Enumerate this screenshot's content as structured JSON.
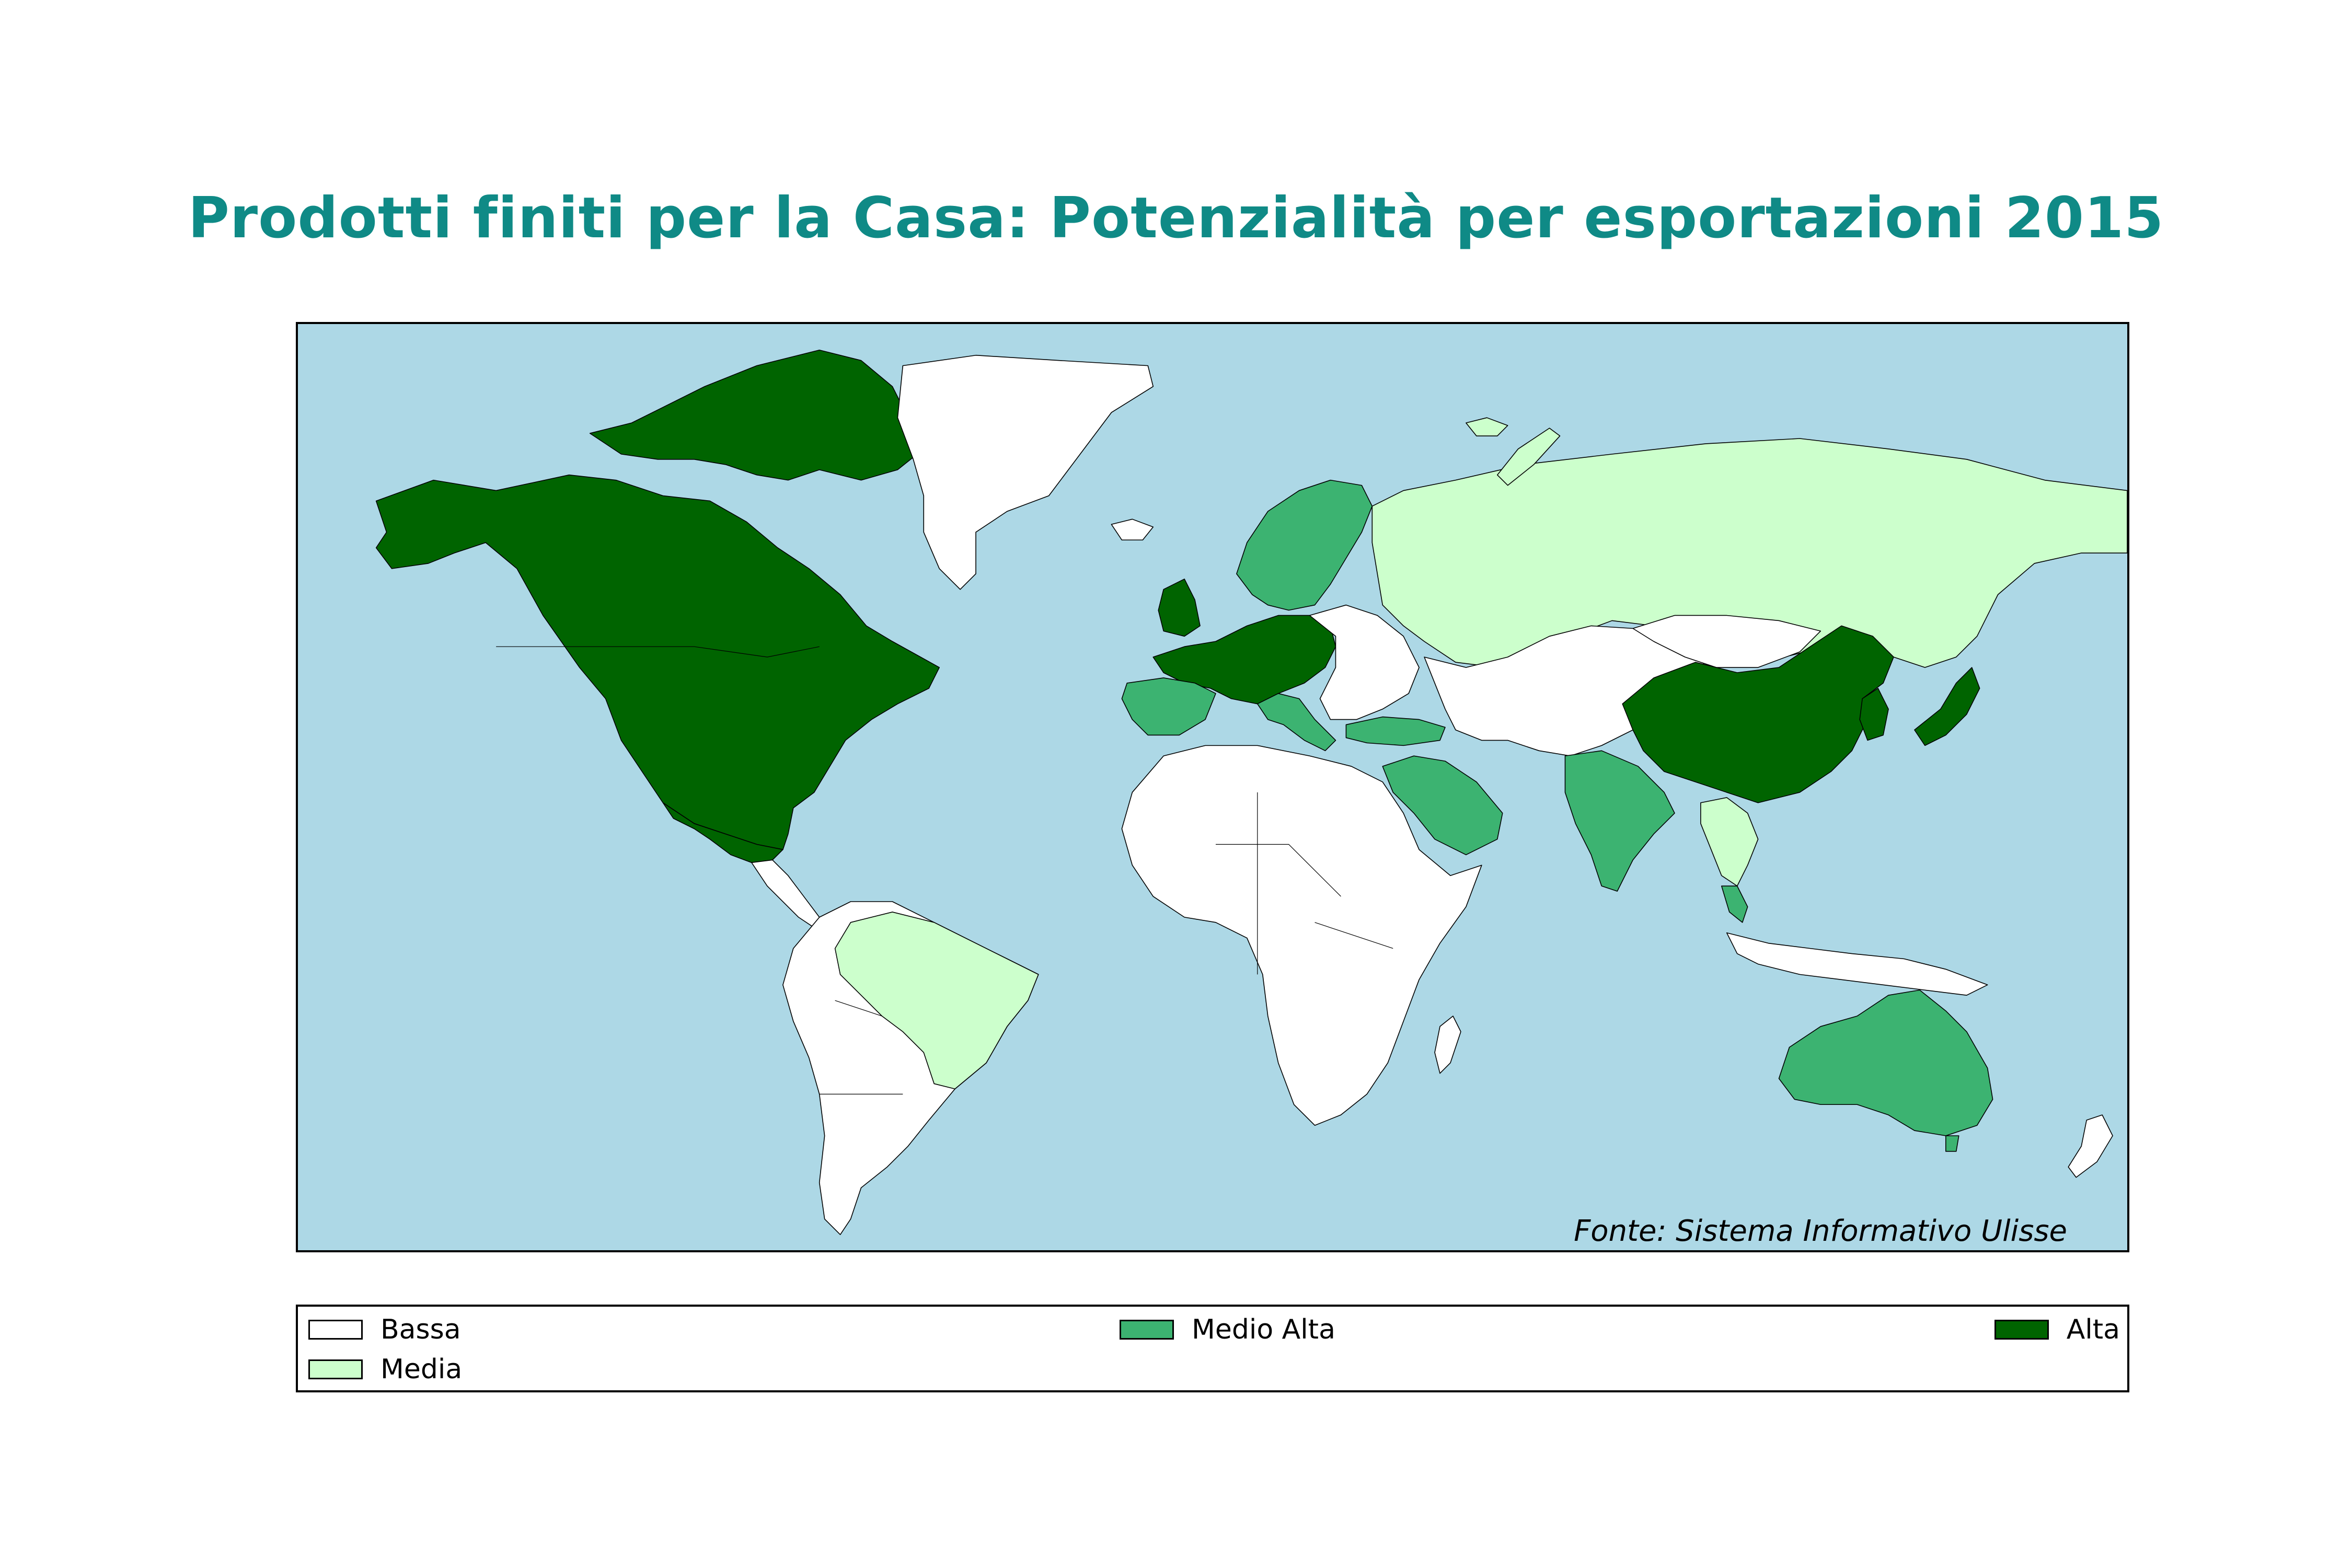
{
  "title": "Prodotti finiti per la Casa: Potenzialità per esportazioni 2015",
  "source": "Fonte: Sistema Informativo Ulisse",
  "colors": {
    "ocean": "#add8e6",
    "title": "#0f8a86",
    "bassa": "#ffffff",
    "media": "#ccffcc",
    "medio_alta": "#3cb371",
    "alta": "#006400"
  },
  "legend": [
    {
      "key": "bassa",
      "label": "Bassa",
      "color": "#ffffff"
    },
    {
      "key": "media",
      "label": "Media",
      "color": "#ccffcc"
    },
    {
      "key": "medio_alta",
      "label": "Medio Alta",
      "color": "#3cb371"
    },
    {
      "key": "alta",
      "label": "Alta",
      "color": "#006400"
    }
  ]
}
